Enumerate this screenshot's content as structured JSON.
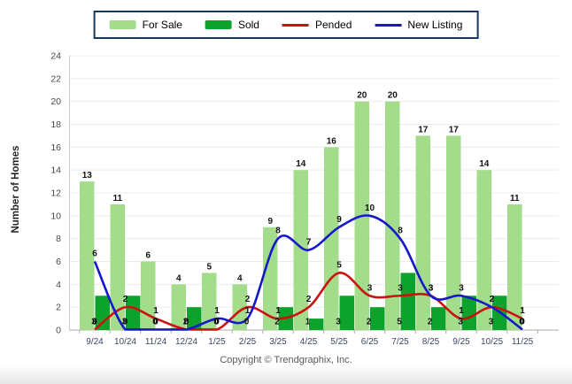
{
  "legend": {
    "items": [
      {
        "label": "For Sale",
        "swatch": "bar",
        "series": "For Sale"
      },
      {
        "label": "Sold",
        "swatch": "bar",
        "series": "Sold"
      },
      {
        "label": "Pended",
        "swatch": "line",
        "series": "Pended"
      },
      {
        "label": "New Listing",
        "swatch": "line",
        "series": "New Listing"
      }
    ]
  },
  "axis": {
    "y_title": "Number of Homes"
  },
  "footer": {
    "text": "Copyright © Trendgraphix, Inc."
  },
  "chart_data": {
    "type": "bar",
    "subtype": "grouped bars with smoothed overlay lines",
    "categories": [
      "9/24",
      "10/24",
      "11/24",
      "12/24",
      "1/25",
      "2/25",
      "3/25",
      "4/25",
      "5/25",
      "6/25",
      "7/25",
      "8/25",
      "9/25",
      "10/25",
      "11/25"
    ],
    "series": [
      {
        "name": "For Sale",
        "type": "bar",
        "color": "#A3DD8C",
        "values": [
          13,
          11,
          6,
          4,
          5,
          4,
          9,
          14,
          16,
          20,
          20,
          17,
          17,
          14,
          11
        ]
      },
      {
        "name": "Sold",
        "type": "bar",
        "color": "#0DA22B",
        "values": [
          3,
          3,
          0,
          2,
          0,
          0,
          2,
          1,
          3,
          2,
          5,
          2,
          3,
          3,
          0
        ]
      },
      {
        "name": "Pended",
        "type": "line",
        "color": "#CC1111",
        "values": [
          0,
          2,
          1,
          0,
          0,
          2,
          1,
          2,
          5,
          3,
          3,
          3,
          1,
          2,
          1
        ]
      },
      {
        "name": "New Listing",
        "type": "line",
        "color": "#1717CC",
        "values": [
          6,
          0,
          0,
          0,
          1,
          1,
          8,
          7,
          9,
          10,
          8,
          3,
          3,
          2,
          0
        ]
      }
    ],
    "title": "",
    "xlabel": "",
    "ylabel": "Number of Homes",
    "ylim": [
      0,
      24
    ],
    "ytick_step": 2,
    "grid": true,
    "legend_position": "top",
    "data_labels": true,
    "colors": {
      "grid": "#ECECEC",
      "axis": "#ABABAB",
      "data_label": "#111111",
      "x_tick_label": "#3A4660",
      "y_tick_label": "#474747",
      "legend_border": "#17375E"
    }
  }
}
